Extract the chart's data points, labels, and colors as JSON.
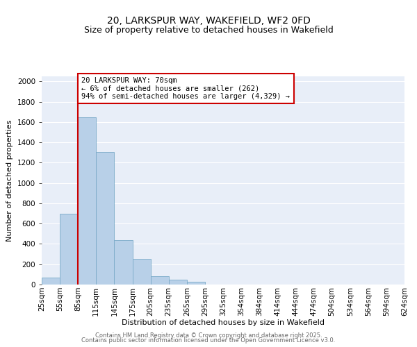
{
  "title1": "20, LARKSPUR WAY, WAKEFIELD, WF2 0FD",
  "title2": "Size of property relative to detached houses in Wakefield",
  "xlabel": "Distribution of detached houses by size in Wakefield",
  "ylabel": "Number of detached properties",
  "bar_values": [
    65,
    700,
    1650,
    1305,
    435,
    250,
    85,
    50,
    25,
    0,
    0,
    0,
    0,
    0,
    0,
    0,
    0,
    0,
    0,
    0
  ],
  "categories": [
    "25sqm",
    "55sqm",
    "85sqm",
    "115sqm",
    "145sqm",
    "175sqm",
    "205sqm",
    "235sqm",
    "265sqm",
    "295sqm",
    "325sqm",
    "354sqm",
    "384sqm",
    "414sqm",
    "444sqm",
    "474sqm",
    "504sqm",
    "534sqm",
    "564sqm",
    "594sqm",
    "624sqm"
  ],
  "bar_color": "#b8d0e8",
  "bar_edge_color": "#7aaac8",
  "marker_line_color": "#cc0000",
  "annotation_line1": "20 LARKSPUR WAY: 70sqm",
  "annotation_line2": "← 6% of detached houses are smaller (262)",
  "annotation_line3": "94% of semi-detached houses are larger (4,329) →",
  "annotation_box_color": "white",
  "annotation_box_edge_color": "#cc0000",
  "ylim": [
    0,
    2050
  ],
  "yticks": [
    0,
    200,
    400,
    600,
    800,
    1000,
    1200,
    1400,
    1600,
    1800,
    2000
  ],
  "bg_color": "#e8eef8",
  "footer1": "Contains HM Land Registry data © Crown copyright and database right 2025.",
  "footer2": "Contains public sector information licensed under the Open Government Licence v3.0.",
  "title_fontsize": 10,
  "subtitle_fontsize": 9,
  "axis_label_fontsize": 8,
  "tick_fontsize": 7.5,
  "footer_fontsize": 6
}
